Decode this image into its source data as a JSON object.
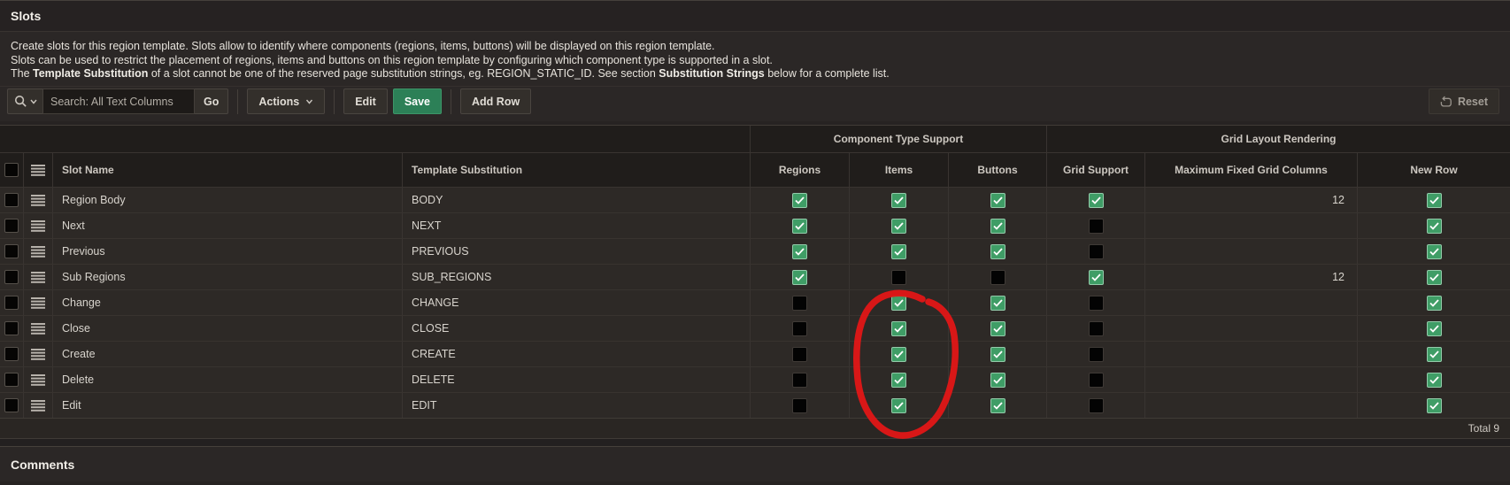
{
  "page": {
    "title": "Slots"
  },
  "description": {
    "lines": [
      [
        {
          "t": "Create slots for this region template. Slots allow to identify where components (regions, items, buttons) will be displayed on this region template.",
          "b": false
        }
      ],
      [
        {
          "t": "Slots can be used to restrict the placement of regions, items and buttons on this region template by configuring which component type is supported in a slot.",
          "b": false
        }
      ],
      [
        {
          "t": "The ",
          "b": false
        },
        {
          "t": "Template Substitution",
          "b": true
        },
        {
          "t": " of a slot cannot be one of the reserved page substitution strings, eg. REGION_STATIC_ID. See section ",
          "b": false
        },
        {
          "t": "Substitution Strings",
          "b": true
        },
        {
          "t": " below for a complete list.",
          "b": false
        }
      ]
    ]
  },
  "toolbar": {
    "search_placeholder": "Search: All Text Columns",
    "go_label": "Go",
    "actions_label": "Actions",
    "edit_label": "Edit",
    "save_label": "Save",
    "add_row_label": "Add Row",
    "reset_label": "Reset"
  },
  "grid": {
    "group_headers": {
      "component_type_support": "Component Type Support",
      "grid_layout_rendering": "Grid Layout Rendering"
    },
    "columns": [
      "Slot Name",
      "Template Substitution",
      "Regions",
      "Items",
      "Buttons",
      "Grid Support",
      "Maximum Fixed Grid Columns",
      "New Row"
    ],
    "rows": [
      {
        "name": "Region Body",
        "substitution": "BODY",
        "regions": true,
        "items": true,
        "buttons": true,
        "grid_support": true,
        "max_fixed_grid_columns": "12",
        "new_row": true
      },
      {
        "name": "Next",
        "substitution": "NEXT",
        "regions": true,
        "items": true,
        "buttons": true,
        "grid_support": false,
        "max_fixed_grid_columns": "",
        "new_row": true
      },
      {
        "name": "Previous",
        "substitution": "PREVIOUS",
        "regions": true,
        "items": true,
        "buttons": true,
        "grid_support": false,
        "max_fixed_grid_columns": "",
        "new_row": true
      },
      {
        "name": "Sub Regions",
        "substitution": "SUB_REGIONS",
        "regions": true,
        "items": false,
        "buttons": false,
        "grid_support": true,
        "max_fixed_grid_columns": "12",
        "new_row": true
      },
      {
        "name": "Change",
        "substitution": "CHANGE",
        "regions": false,
        "items": true,
        "buttons": true,
        "grid_support": false,
        "max_fixed_grid_columns": "",
        "new_row": true
      },
      {
        "name": "Close",
        "substitution": "CLOSE",
        "regions": false,
        "items": true,
        "buttons": true,
        "grid_support": false,
        "max_fixed_grid_columns": "",
        "new_row": true
      },
      {
        "name": "Create",
        "substitution": "CREATE",
        "regions": false,
        "items": true,
        "buttons": true,
        "grid_support": false,
        "max_fixed_grid_columns": "",
        "new_row": true
      },
      {
        "name": "Delete",
        "substitution": "DELETE",
        "regions": false,
        "items": true,
        "buttons": true,
        "grid_support": false,
        "max_fixed_grid_columns": "",
        "new_row": true
      },
      {
        "name": "Edit",
        "substitution": "EDIT",
        "regions": false,
        "items": true,
        "buttons": true,
        "grid_support": false,
        "max_fixed_grid_columns": "",
        "new_row": true
      }
    ],
    "footer_total": "Total 9"
  },
  "comments": {
    "title": "Comments"
  },
  "annotation": {
    "shape": "hand-drawn-circle",
    "target": "items-column-checkboxes-rows-change-to-edit",
    "color": "#e01717"
  },
  "colors": {
    "save_button_green": "#2c8057",
    "checkbox_checked_green": "#3f9d66",
    "annotation_red": "#e01717",
    "header_background": "#201d1b",
    "row_background": "#2d2926"
  }
}
